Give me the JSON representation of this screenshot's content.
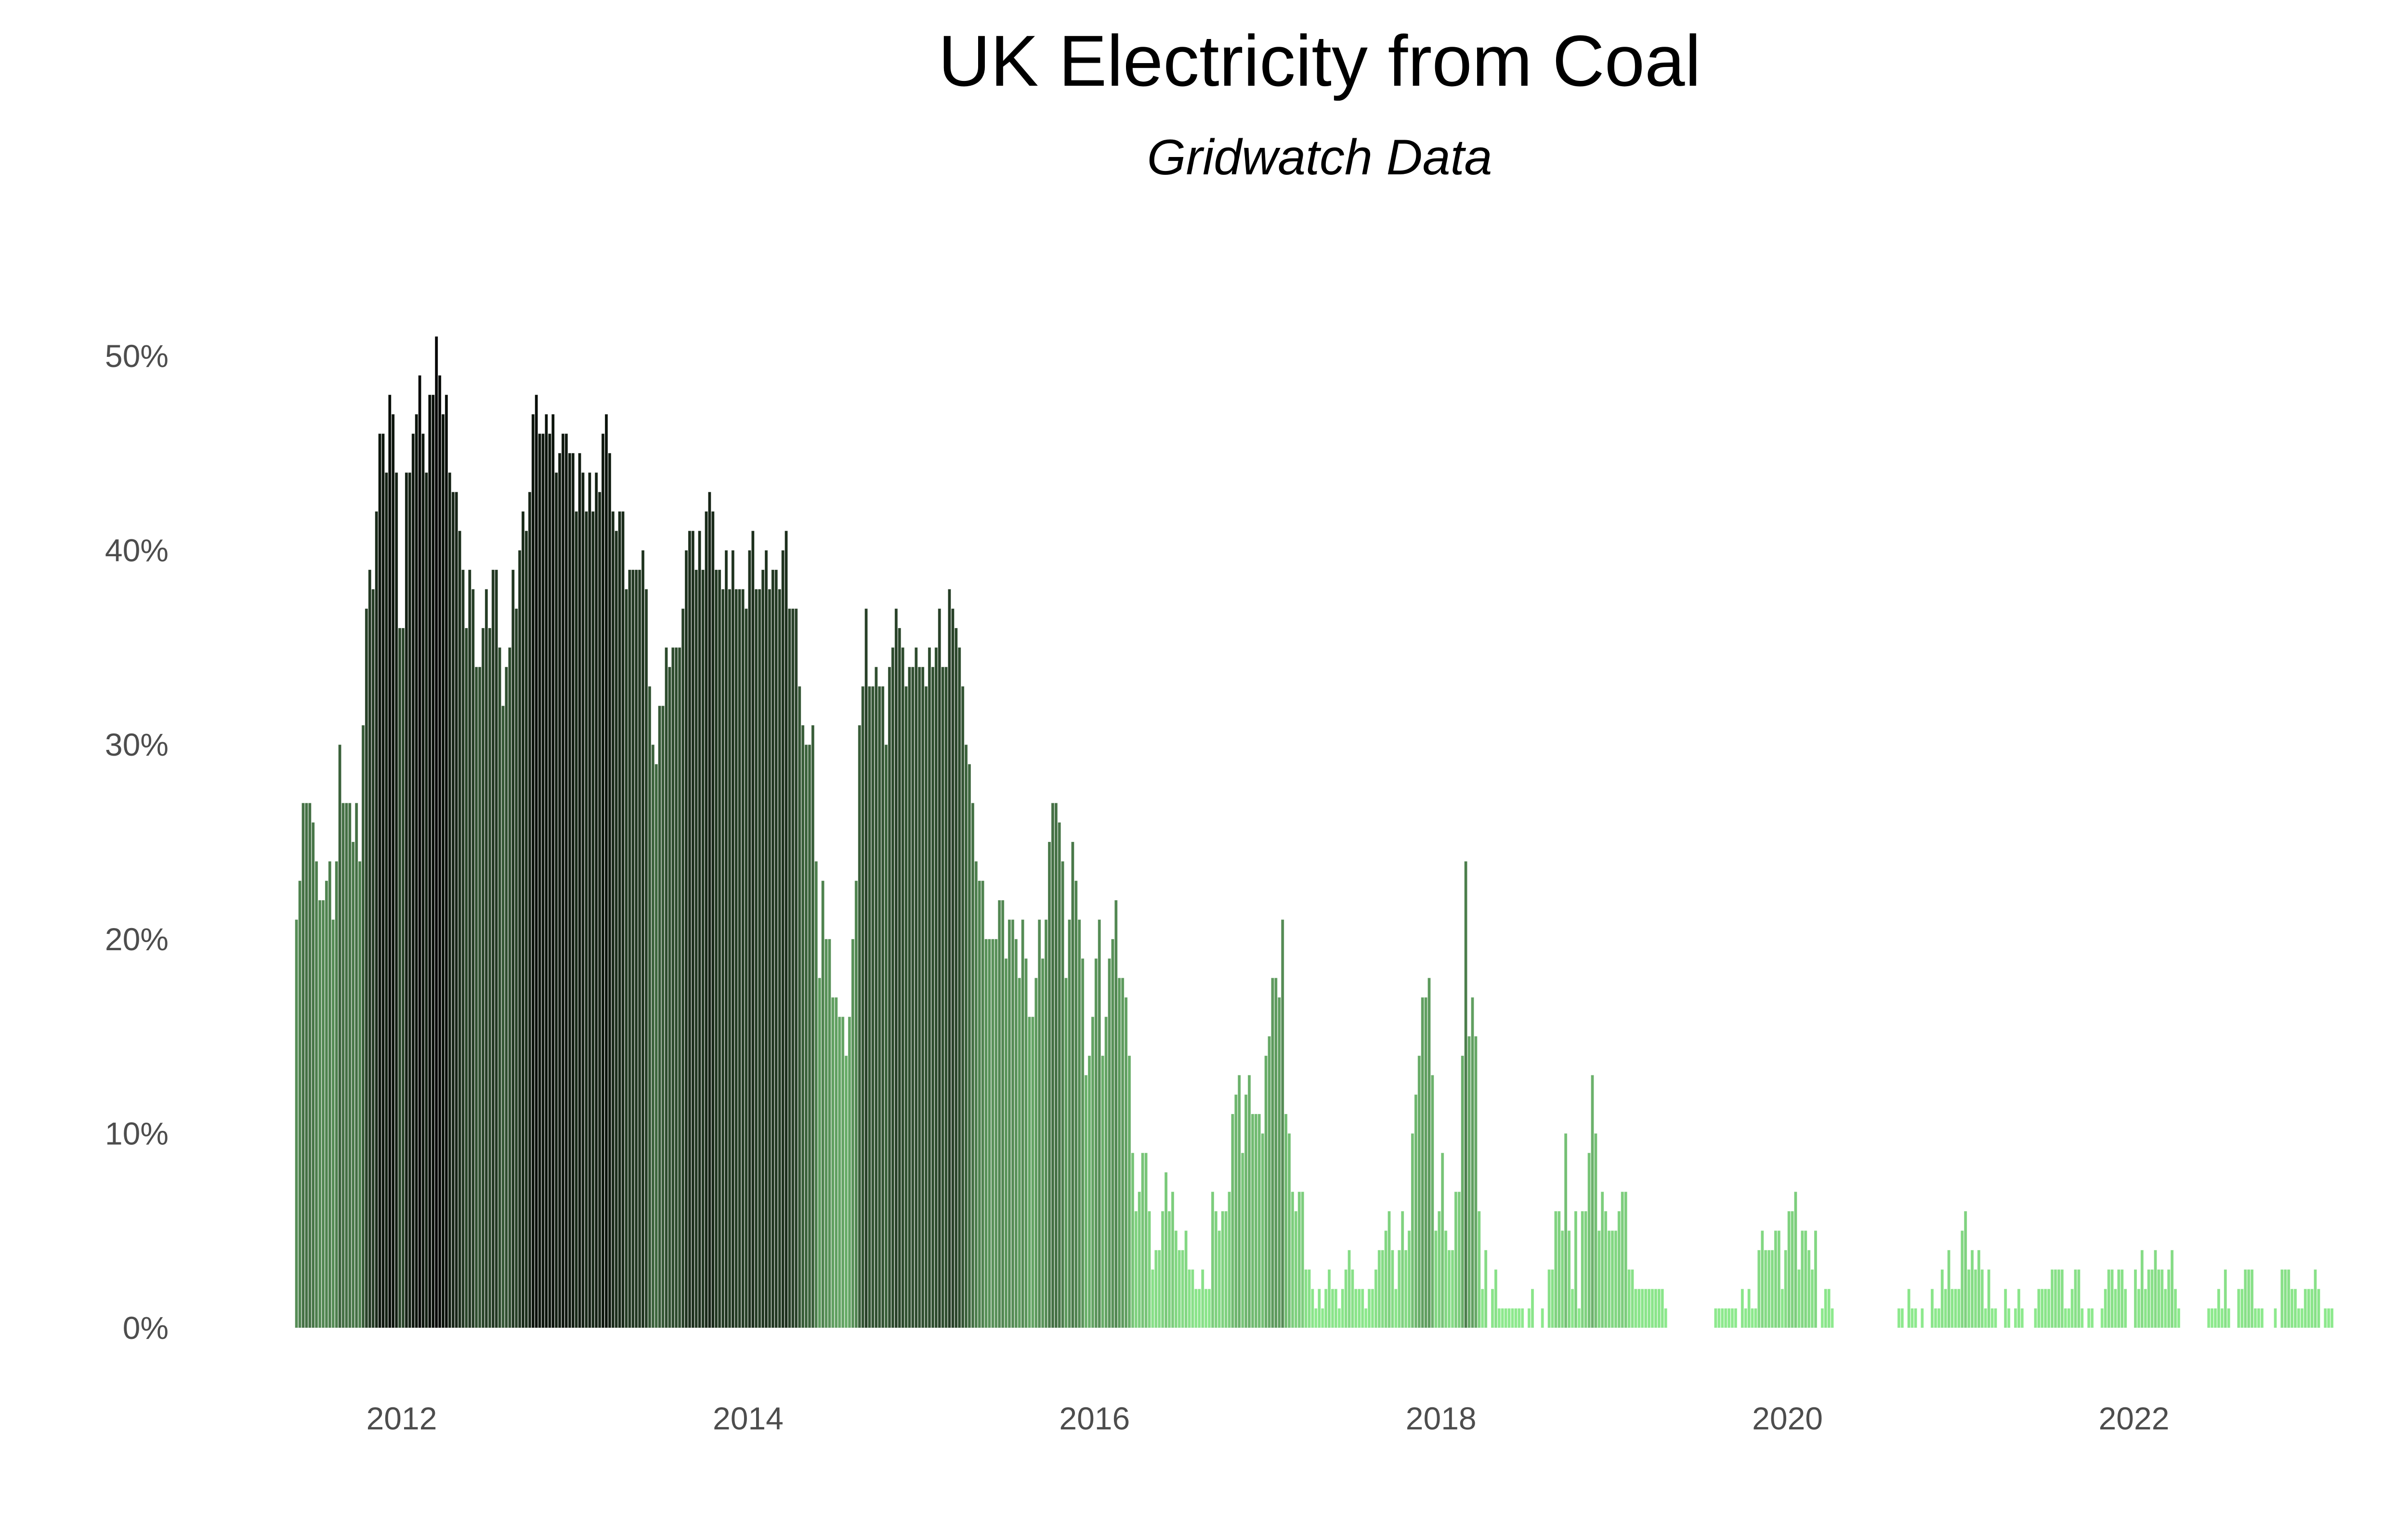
{
  "chart_data": {
    "type": "bar",
    "title": "UK Electricity from Coal",
    "subtitle": "Gridwatch Data",
    "xlabel": "",
    "ylabel": "",
    "x_unit": "year (weekly bars)",
    "x_ticks": [
      "2012",
      "2014",
      "2016",
      "2018",
      "2020",
      "2022"
    ],
    "y_ticks": [
      "0%",
      "10%",
      "20%",
      "30%",
      "40%",
      "50%"
    ],
    "ylim": [
      0,
      52
    ],
    "grid": false,
    "legend": "none",
    "color_low": "#90ee90",
    "color_high": "#000000",
    "weekly_values_by_year": {
      "2011": [
        null,
        null,
        null,
        null,
        null,
        null,
        null,
        null,
        null,
        null,
        null,
        null,
        null,
        null,
        null,
        null,
        null,
        null,
        null,
        null,
        21,
        23,
        27,
        27,
        27,
        26,
        24,
        22,
        22,
        23,
        24,
        21,
        24,
        30,
        27,
        27,
        27,
        25,
        27,
        24,
        31,
        37,
        39,
        38,
        42,
        46,
        46,
        44,
        48,
        47,
        44,
        36
      ],
      "2012": [
        36,
        44,
        44,
        46,
        47,
        49,
        46,
        44,
        48,
        48,
        51,
        49,
        47,
        48,
        44,
        43,
        43,
        41,
        39,
        36,
        39,
        38,
        34,
        34,
        36,
        38,
        36,
        39,
        39,
        35,
        32,
        34,
        35,
        39,
        37,
        40,
        42,
        41,
        43,
        47,
        48,
        46,
        46,
        47,
        46,
        47,
        44,
        45,
        46,
        46,
        45,
        45
      ],
      "2013": [
        42,
        45,
        44,
        42,
        44,
        42,
        44,
        43,
        46,
        47,
        45,
        42,
        41,
        42,
        42,
        38,
        39,
        39,
        39,
        39,
        40,
        38,
        33,
        30,
        29,
        32,
        32,
        35,
        34,
        35,
        35,
        35,
        37,
        40,
        41,
        41,
        39,
        41,
        39,
        42,
        43,
        42,
        39,
        39,
        38,
        40,
        38,
        40,
        38,
        38,
        38,
        37
      ],
      "2014": [
        40,
        41,
        38,
        38,
        39,
        40,
        38,
        39,
        39,
        38,
        40,
        41,
        37,
        37,
        37,
        33,
        31,
        30,
        30,
        31,
        24,
        18,
        23,
        20,
        20,
        17,
        17,
        16,
        16,
        14,
        16,
        20,
        23,
        31,
        33,
        37,
        33,
        33,
        34,
        33,
        33,
        30,
        34,
        35,
        37,
        36,
        35,
        33,
        34,
        34,
        35,
        34
      ],
      "2015": [
        34,
        33,
        35,
        34,
        35,
        37,
        34,
        34,
        38,
        37,
        36,
        35,
        33,
        30,
        29,
        27,
        24,
        23,
        23,
        20,
        20,
        20,
        20,
        22,
        22,
        19,
        21,
        21,
        20,
        18,
        21,
        19,
        16,
        16,
        18,
        21,
        19,
        21,
        25,
        27,
        27,
        26,
        24,
        18,
        21,
        25,
        23,
        21,
        19,
        13,
        14,
        16
      ],
      "2016": [
        19,
        21,
        14,
        16,
        19,
        20,
        22,
        18,
        18,
        17,
        14,
        9,
        6,
        7,
        9,
        9,
        6,
        3,
        4,
        4,
        6,
        8,
        6,
        7,
        5,
        4,
        4,
        5,
        3,
        3,
        2,
        2,
        3,
        2,
        2,
        7,
        6,
        5,
        6,
        6,
        7,
        11,
        12,
        13,
        9,
        12,
        13,
        11,
        11,
        11,
        10,
        14
      ],
      "2017": [
        15,
        18,
        18,
        17,
        21,
        11,
        10,
        7,
        6,
        7,
        7,
        3,
        3,
        2,
        1,
        2,
        1,
        2,
        3,
        2,
        2,
        1,
        2,
        3,
        4,
        3,
        2,
        2,
        2,
        1,
        2,
        2,
        3,
        4,
        4,
        5,
        6,
        4,
        2,
        4,
        6,
        4,
        5,
        10,
        12,
        14,
        17,
        17,
        18,
        13,
        5,
        6
      ],
      "2018": [
        9,
        5,
        4,
        4,
        7,
        7,
        14,
        24,
        15,
        17,
        15,
        6,
        2,
        4,
        0,
        2,
        3,
        1,
        1,
        1,
        1,
        1,
        1,
        1,
        1,
        0,
        1,
        2,
        0,
        0,
        1,
        0,
        3,
        3,
        6,
        6,
        5,
        10,
        5,
        2,
        6,
        1,
        6,
        6,
        9,
        13,
        10,
        5,
        7,
        6,
        5,
        5
      ],
      "2019": [
        5,
        6,
        7,
        7,
        3,
        3,
        2,
        2,
        2,
        2,
        2,
        2,
        2,
        2,
        2,
        1,
        0,
        0,
        0,
        0,
        0,
        0,
        0,
        0,
        0,
        0,
        0,
        0,
        0,
        0,
        1,
        1,
        1,
        1,
        1,
        1,
        1,
        0,
        2,
        1,
        2,
        1,
        1,
        4,
        5,
        4,
        4,
        4,
        5,
        5,
        2,
        4
      ],
      "2020": [
        6,
        6,
        7,
        3,
        5,
        5,
        4,
        3,
        5,
        0,
        1,
        2,
        2,
        1,
        0,
        0,
        0,
        0,
        0,
        0,
        0,
        0,
        0,
        0,
        0,
        0,
        0,
        0,
        0,
        0,
        0,
        0,
        0,
        1,
        1,
        0,
        2,
        1,
        1,
        0,
        1,
        0,
        0,
        2,
        1,
        1,
        3,
        2,
        4,
        2,
        2,
        2
      ],
      "2021": [
        5,
        6,
        3,
        4,
        3,
        4,
        3,
        1,
        3,
        1,
        1,
        0,
        0,
        2,
        1,
        0,
        1,
        2,
        1,
        0,
        0,
        0,
        1,
        2,
        2,
        2,
        2,
        3,
        3,
        3,
        3,
        1,
        1,
        2,
        3,
        3,
        1,
        0,
        1,
        1,
        0,
        0,
        1,
        2,
        3,
        3,
        2,
        3,
        3,
        2,
        0,
        0
      ],
      "2022": [
        3,
        2,
        4,
        2,
        3,
        3,
        4,
        3,
        3,
        2,
        3,
        4,
        2,
        1,
        0,
        0,
        0,
        0,
        0,
        0,
        0,
        0,
        1,
        1,
        1,
        2,
        1,
        3,
        1,
        0,
        0,
        2,
        2,
        3,
        3,
        3,
        1,
        1,
        1,
        0,
        0,
        0,
        1,
        0,
        3,
        3,
        3,
        2,
        2,
        1,
        1,
        2
      ],
      "2023": [
        2,
        2,
        3,
        2,
        0,
        1,
        1,
        1
      ]
    }
  }
}
